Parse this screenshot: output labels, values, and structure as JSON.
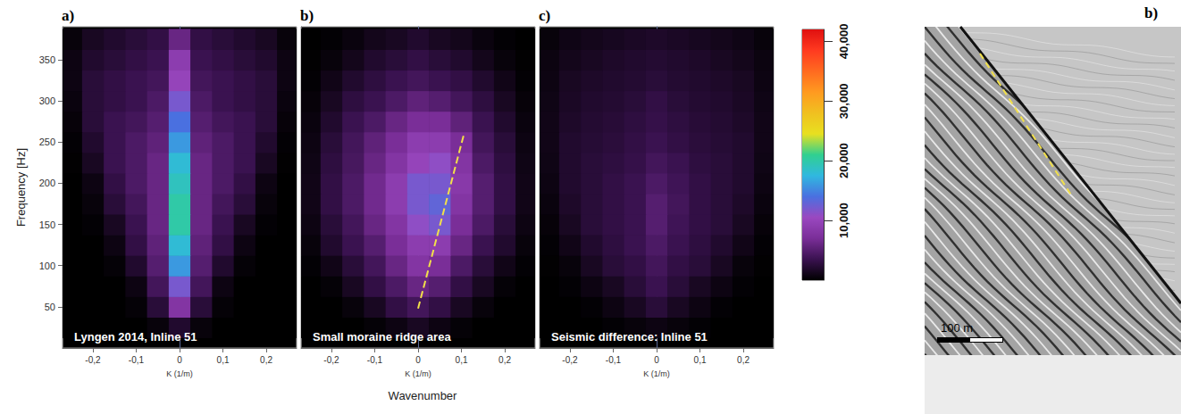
{
  "chart_data": [
    {
      "type": "heatmap",
      "panel": "a)",
      "title": "Lyngen 2014, Inline 51",
      "x_label": "K (1/m)",
      "y_label": "Frequency [Hz]",
      "xlim": [
        -0.27,
        0.27
      ],
      "xticks": [
        {
          "value": -0.2,
          "label": "-0,2"
        },
        {
          "value": -0.1,
          "label": "-0,1"
        },
        0,
        {
          "value": 0.1,
          "label": "0,1"
        },
        {
          "value": 0.2,
          "label": "0,2"
        }
      ],
      "ylim": [
        0,
        390
      ],
      "yticks": [
        50,
        100,
        150,
        200,
        250,
        300,
        350
      ],
      "cells": {
        "k": [
          -0.25,
          -0.2,
          -0.15,
          -0.1,
          -0.05,
          0,
          0.05,
          0.1,
          0.15,
          0.2,
          0.25
        ],
        "f": [
          25,
          50,
          75,
          100,
          125,
          150,
          175,
          200,
          225,
          250,
          275,
          300,
          325,
          350,
          375
        ],
        "values": [
          [
            0,
            0,
            0,
            0,
            500,
            2000,
            500,
            0,
            0,
            0,
            0
          ],
          [
            0,
            0,
            0,
            300,
            2500,
            8000,
            2500,
            300,
            0,
            0,
            0
          ],
          [
            0,
            0,
            0,
            800,
            4000,
            12000,
            4000,
            800,
            0,
            0,
            0
          ],
          [
            0,
            0,
            300,
            2000,
            5000,
            16000,
            5000,
            2000,
            300,
            0,
            0
          ],
          [
            0,
            0,
            800,
            3000,
            5500,
            18000,
            5500,
            3000,
            800,
            0,
            0
          ],
          [
            0,
            200,
            1500,
            3500,
            6000,
            20000,
            6000,
            3500,
            1500,
            200,
            0
          ],
          [
            0,
            500,
            2500,
            4000,
            6000,
            20000,
            6000,
            4000,
            2500,
            500,
            0
          ],
          [
            0,
            800,
            3000,
            4500,
            6000,
            19000,
            6000,
            4500,
            3000,
            800,
            0
          ],
          [
            100,
            1500,
            3500,
            4500,
            6000,
            18000,
            6000,
            4500,
            3500,
            1500,
            100
          ],
          [
            200,
            2000,
            3500,
            4500,
            5500,
            16000,
            5500,
            4500,
            3500,
            2000,
            200
          ],
          [
            400,
            2500,
            3500,
            4000,
            5000,
            14000,
            5000,
            4000,
            3500,
            2500,
            400
          ],
          [
            600,
            2500,
            3000,
            3500,
            4500,
            12000,
            4500,
            3500,
            3000,
            2500,
            600
          ],
          [
            800,
            2500,
            3000,
            3500,
            4000,
            10000,
            4000,
            3500,
            3000,
            2500,
            800
          ],
          [
            800,
            2000,
            2500,
            3000,
            3500,
            9000,
            3500,
            3000,
            2500,
            2000,
            800
          ],
          [
            500,
            1500,
            2000,
            2500,
            3000,
            6000,
            3000,
            2500,
            2000,
            1500,
            500
          ]
        ]
      }
    },
    {
      "type": "heatmap",
      "panel": "b)",
      "title": "Small moraine ridge area",
      "x_label": "K (1/m)",
      "xlim": [
        -0.27,
        0.27
      ],
      "xticks": [
        {
          "value": -0.2,
          "label": "-0,2"
        },
        {
          "value": -0.1,
          "label": "-0,1"
        },
        0,
        {
          "value": 0.1,
          "label": "0,1"
        },
        {
          "value": 0.2,
          "label": "0,2"
        }
      ],
      "ylim": [
        0,
        390
      ],
      "yticks": [
        50,
        100,
        150,
        200,
        250,
        300,
        350
      ],
      "annotation_line": {
        "x": [
          0,
          0.105
        ],
        "y": [
          48,
          258
        ],
        "color": "#f2e04a",
        "line_style": "dashed"
      },
      "cells": {
        "k": [
          -0.25,
          -0.2,
          -0.15,
          -0.1,
          -0.05,
          0,
          0.05,
          0.1,
          0.15,
          0.2,
          0.25
        ],
        "f": [
          25,
          50,
          75,
          100,
          125,
          150,
          175,
          200,
          225,
          250,
          275,
          300,
          325,
          350,
          375
        ],
        "values": [
          [
            0,
            0,
            0,
            300,
            800,
            1500,
            800,
            300,
            0,
            0,
            0
          ],
          [
            0,
            0,
            500,
            1500,
            3000,
            4000,
            3000,
            1500,
            500,
            0,
            0
          ],
          [
            0,
            300,
            1500,
            3000,
            4500,
            6000,
            5000,
            3000,
            1500,
            300,
            0
          ],
          [
            200,
            1000,
            2500,
            4000,
            6000,
            8000,
            7000,
            4500,
            2500,
            1000,
            200
          ],
          [
            500,
            2000,
            3500,
            5000,
            7000,
            9000,
            9000,
            6000,
            3500,
            2000,
            500
          ],
          [
            800,
            2500,
            4000,
            6000,
            8000,
            11000,
            12000,
            7000,
            4500,
            2500,
            800
          ],
          [
            1000,
            3000,
            4500,
            6500,
            9000,
            12000,
            13000,
            8000,
            5000,
            3000,
            1000
          ],
          [
            1000,
            3000,
            4500,
            6500,
            9000,
            12000,
            12000,
            8500,
            5000,
            3000,
            1000
          ],
          [
            900,
            2800,
            4200,
            6000,
            8000,
            10000,
            11000,
            8000,
            4500,
            2800,
            900
          ],
          [
            800,
            2500,
            4000,
            5500,
            7000,
            9000,
            9000,
            7000,
            4000,
            2500,
            800
          ],
          [
            600,
            2000,
            3500,
            4500,
            6000,
            7000,
            7000,
            5500,
            3500,
            2000,
            600
          ],
          [
            400,
            1500,
            2800,
            3500,
            4500,
            5500,
            5000,
            4000,
            2800,
            1500,
            400
          ],
          [
            200,
            1000,
            2000,
            2800,
            3500,
            4000,
            3500,
            3000,
            2000,
            1000,
            200
          ],
          [
            100,
            500,
            1200,
            2000,
            2500,
            3000,
            2500,
            2000,
            1200,
            500,
            100
          ],
          [
            0,
            200,
            600,
            1200,
            1500,
            2000,
            1500,
            1200,
            600,
            200,
            0
          ]
        ]
      }
    },
    {
      "type": "heatmap",
      "panel": "c)",
      "title": "Seismic difference: Inline 51",
      "x_label": "K (1/m)",
      "xlim": [
        -0.27,
        0.27
      ],
      "xticks": [
        {
          "value": -0.2,
          "label": "-0,2"
        },
        {
          "value": -0.1,
          "label": "-0,1"
        },
        0,
        {
          "value": 0.1,
          "label": "0,1"
        },
        {
          "value": 0.2,
          "label": "0,2"
        }
      ],
      "ylim": [
        0,
        390
      ],
      "yticks": [
        50,
        100,
        150,
        200,
        250,
        300,
        350
      ],
      "cells": {
        "k": [
          -0.25,
          -0.2,
          -0.15,
          -0.1,
          -0.05,
          0,
          0.05,
          0.1,
          0.15,
          0.2,
          0.25
        ],
        "f": [
          25,
          50,
          75,
          100,
          125,
          150,
          175,
          200,
          225,
          250,
          275,
          300,
          325,
          350,
          375
        ],
        "values": [
          [
            0,
            0,
            0,
            200,
            500,
            800,
            500,
            200,
            0,
            0,
            0
          ],
          [
            0,
            0,
            200,
            800,
            1500,
            2500,
            1500,
            800,
            200,
            0,
            0
          ],
          [
            0,
            200,
            800,
            1500,
            2500,
            3500,
            2500,
            1500,
            800,
            200,
            0
          ],
          [
            100,
            500,
            1500,
            2500,
            3000,
            4000,
            3000,
            2500,
            1500,
            500,
            100
          ],
          [
            200,
            1000,
            2000,
            2800,
            3500,
            4500,
            3500,
            2800,
            2000,
            1000,
            200
          ],
          [
            400,
            1500,
            2500,
            3000,
            3500,
            5000,
            3800,
            3000,
            2500,
            1500,
            400
          ],
          [
            600,
            1800,
            2500,
            3000,
            3500,
            5000,
            4000,
            3000,
            2500,
            1800,
            600
          ],
          [
            800,
            2000,
            2500,
            3000,
            3500,
            4500,
            3800,
            3000,
            2500,
            2000,
            800
          ],
          [
            900,
            2000,
            2500,
            2800,
            3200,
            4000,
            3500,
            2800,
            2500,
            2000,
            900
          ],
          [
            1000,
            2000,
            2300,
            2600,
            3000,
            3500,
            3000,
            2600,
            2300,
            2000,
            1000
          ],
          [
            1000,
            1800,
            2200,
            2400,
            2800,
            3200,
            2800,
            2400,
            2200,
            1800,
            1000
          ],
          [
            900,
            1600,
            2000,
            2200,
            2500,
            3000,
            2500,
            2200,
            2000,
            1600,
            900
          ],
          [
            800,
            1500,
            1800,
            2000,
            2200,
            2500,
            2200,
            2000,
            1800,
            1500,
            800
          ],
          [
            700,
            1200,
            1500,
            1800,
            2000,
            2200,
            2000,
            1800,
            1500,
            1200,
            700
          ],
          [
            500,
            900,
            1200,
            1400,
            1600,
            1800,
            1600,
            1400,
            1200,
            900,
            500
          ]
        ]
      }
    }
  ],
  "shared_x_label": "Wavenumber",
  "colorbar": {
    "range": [
      0,
      42000
    ],
    "ticks": [
      10000,
      20000,
      30000,
      40000
    ]
  },
  "seismic_section": {
    "panel": "b)",
    "scale_bar": "100 m"
  }
}
